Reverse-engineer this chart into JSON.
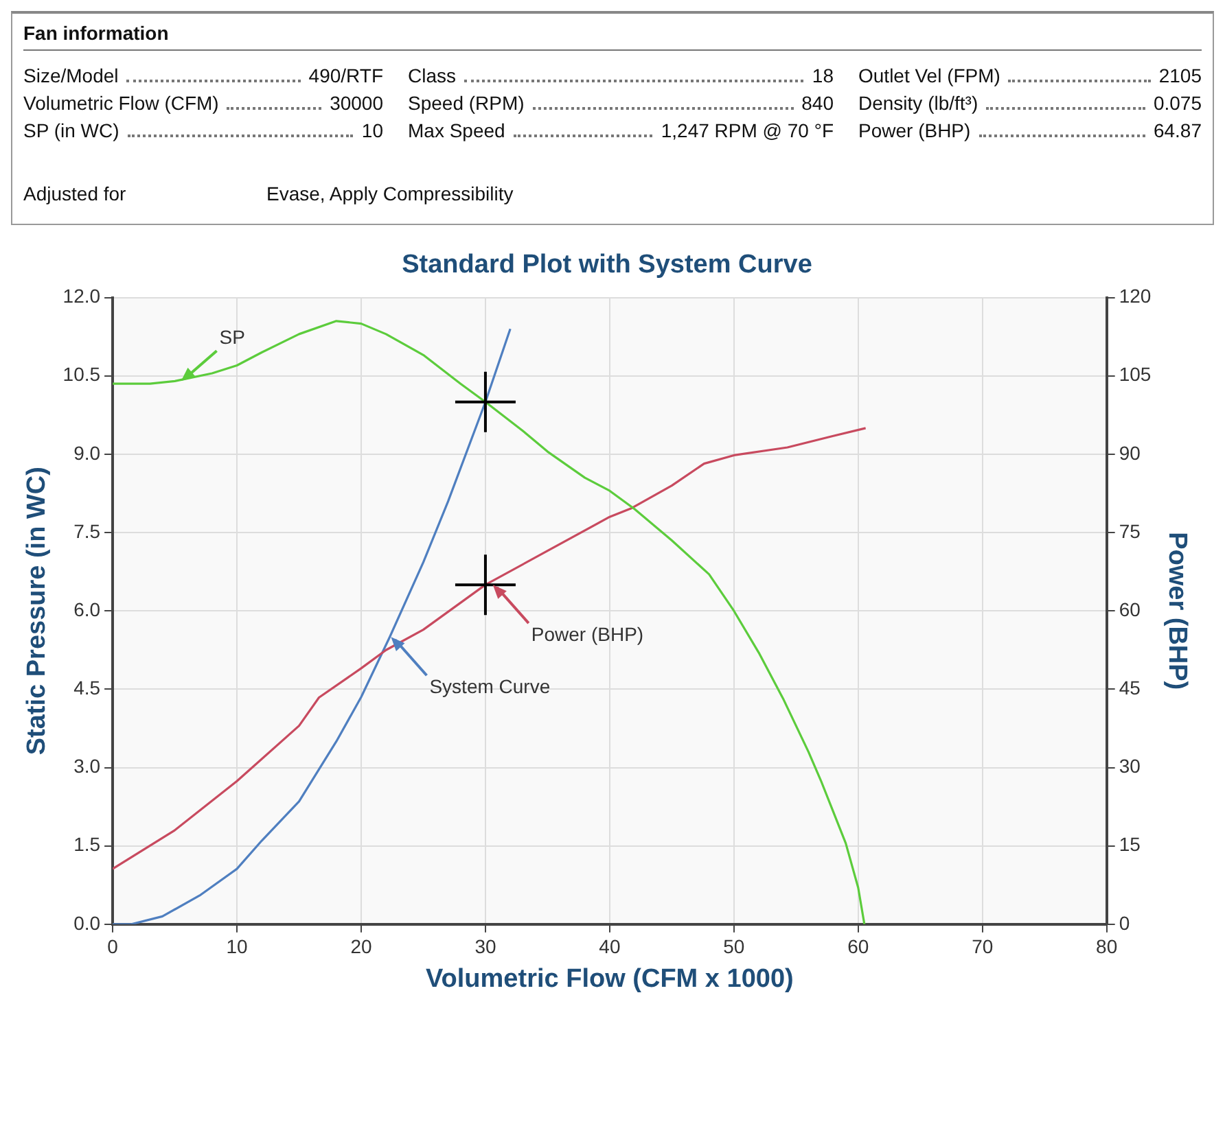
{
  "chart_data": [
    {
      "type": "other",
      "title": "Fan information",
      "annotations": [
        "Size/Model",
        "490/RTF",
        "Class",
        "18",
        "Outlet Vel (FPM)",
        "2105",
        "Volumetric Flow (CFM)",
        "30000",
        "Speed (RPM)",
        "840",
        "Density (lb/ft³)",
        "0.075",
        "SP (in WC)",
        "10",
        "Max Speed",
        "1,247 RPM @ 70 °F",
        "Power  (BHP)",
        "64.87",
        "Adjusted for",
        "Evase, Apply Compressibility"
      ]
    },
    {
      "type": "line",
      "title": "Standard Plot with System Curve",
      "xlabel": "Volumetric Flow (CFM x 1000)",
      "ylabel": "Static Pressure (in WC)",
      "y2label": "Power (BHP)",
      "grid": true,
      "legend": false,
      "xlim": [
        0,
        80
      ],
      "xticks": [
        0,
        10,
        20,
        30,
        40,
        50,
        60,
        70,
        80
      ],
      "ylim": [
        0,
        12
      ],
      "yticks": [
        {
          "value": 0,
          "label": "0.0"
        },
        {
          "value": 1.5,
          "label": "1.5"
        },
        {
          "value": 3,
          "label": "3.0"
        },
        {
          "value": 4.5,
          "label": "4.5"
        },
        {
          "value": 6,
          "label": "6.0"
        },
        {
          "value": 7.5,
          "label": "7.5"
        },
        {
          "value": 9,
          "label": "9.0"
        },
        {
          "value": 10.5,
          "label": "10.5"
        },
        {
          "value": 12,
          "label": "12.0"
        }
      ],
      "y2lim": [
        0,
        120
      ],
      "y2ticks": [
        0,
        15,
        30,
        45,
        60,
        75,
        90,
        105,
        120
      ],
      "series": [
        {
          "color": "#5ccc3c",
          "marker": "none",
          "x": [
            0,
            3,
            5,
            8,
            10,
            12,
            15,
            18,
            20,
            22,
            25,
            28,
            30,
            33,
            35,
            38,
            40,
            42,
            45,
            48,
            50,
            52,
            54,
            56,
            57,
            58,
            59,
            60,
            60.5
          ],
          "values": [
            10.35,
            10.35,
            10.4,
            10.55,
            10.7,
            10.95,
            11.3,
            11.55,
            11.5,
            11.3,
            10.9,
            10.35,
            10.0,
            9.45,
            9.05,
            8.55,
            8.3,
            7.95,
            7.35,
            6.7,
            6.0,
            5.2,
            4.3,
            3.3,
            2.75,
            2.15,
            1.55,
            0.7,
            0
          ]
        },
        {
          "color": "#c84a5f",
          "marker": "none",
          "axis": "y2",
          "x": [
            0,
            5,
            10,
            15,
            16.6,
            20,
            22,
            25,
            30,
            35,
            40,
            41.7,
            45,
            47.6,
            50,
            54.3,
            58,
            60.6
          ],
          "values": [
            10.6,
            18,
            27.4,
            38,
            43.4,
            49,
            52.5,
            56.4,
            65,
            71.5,
            78,
            79.6,
            84,
            88.2,
            89.8,
            91.3,
            93.5,
            95
          ]
        },
        {
          "color": "#4f7fc0",
          "marker": "none",
          "x": [
            0,
            1.5,
            4,
            7,
            10,
            12,
            15,
            18,
            20,
            22.3,
            25,
            27,
            30,
            32
          ],
          "values": [
            0,
            0,
            0.15,
            0.55,
            1.06,
            1.6,
            2.35,
            3.5,
            4.35,
            5.5,
            6.93,
            8.1,
            10,
            11.4
          ]
        },
        {
          "type": "scatter",
          "color": "#000000",
          "marker": "cross",
          "x": [
            30,
            30
          ],
          "values": [
            10,
            6.5
          ]
        }
      ],
      "annotations": [
        {
          "text": "SP",
          "x": 5.5,
          "y": 10.4
        },
        {
          "text": "Power (BHP)",
          "x": 30.6,
          "y": 6.5
        },
        {
          "text": "System Curve",
          "x": 22.4,
          "y": 5.5
        }
      ]
    }
  ]
}
